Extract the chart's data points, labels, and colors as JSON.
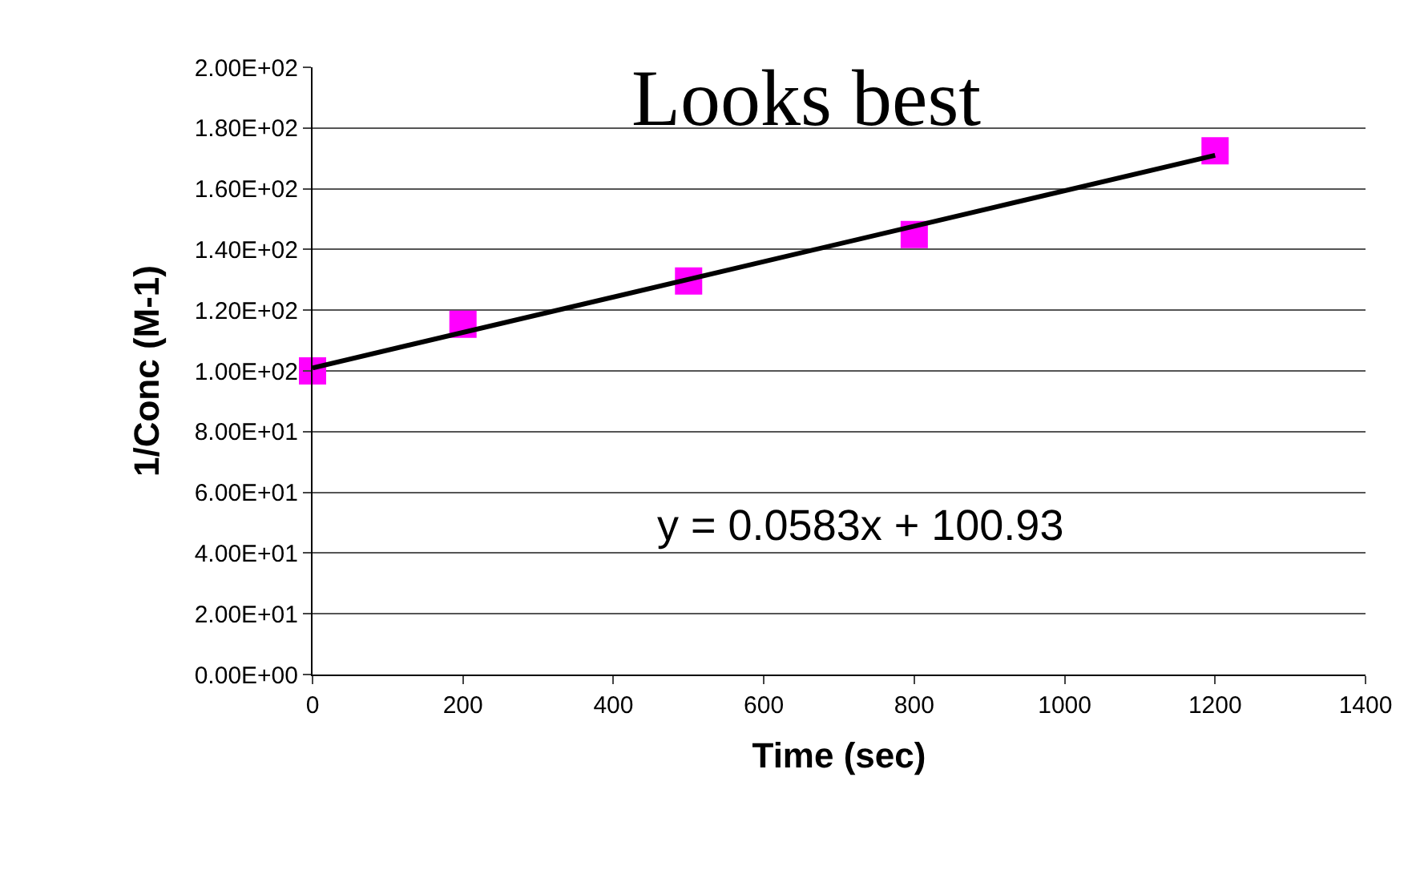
{
  "chart_data": {
    "type": "scatter",
    "xlabel": "Time (sec)",
    "ylabel": "1/Conc (M-1)",
    "x": [
      0,
      200,
      500,
      800,
      1200
    ],
    "series": [
      {
        "color": "#ff00ff",
        "marker": "square",
        "values": [
          100,
          115.4,
          129.6,
          144.9,
          172.5
        ]
      },
      {
        "type": "line",
        "color": "#000000",
        "marker": "none",
        "x": [
          0,
          1200
        ],
        "values": [
          101,
          171
        ]
      }
    ],
    "xlim": [
      0,
      1400
    ],
    "xticks": [
      0,
      200,
      400,
      600,
      800,
      1000,
      1200,
      1400
    ],
    "ylim": [
      0,
      200
    ],
    "yticks": [
      {
        "value": 0,
        "label": "0.00E+00"
      },
      {
        "value": 20,
        "label": "2.00E+01"
      },
      {
        "value": 40,
        "label": "4.00E+01"
      },
      {
        "value": 60,
        "label": "6.00E+01"
      },
      {
        "value": 80,
        "label": "8.00E+01"
      },
      {
        "value": 100,
        "label": "1.00E+02"
      },
      {
        "value": 120,
        "label": "1.20E+02"
      },
      {
        "value": 140,
        "label": "1.40E+02"
      },
      {
        "value": 160,
        "label": "1.60E+02"
      },
      {
        "value": 180,
        "label": "1.80E+02"
      },
      {
        "value": 200,
        "label": "2.00E+02"
      }
    ],
    "grid": "y",
    "annotations": [
      "Looks best",
      "y = 0.0583x + 100.93"
    ]
  }
}
